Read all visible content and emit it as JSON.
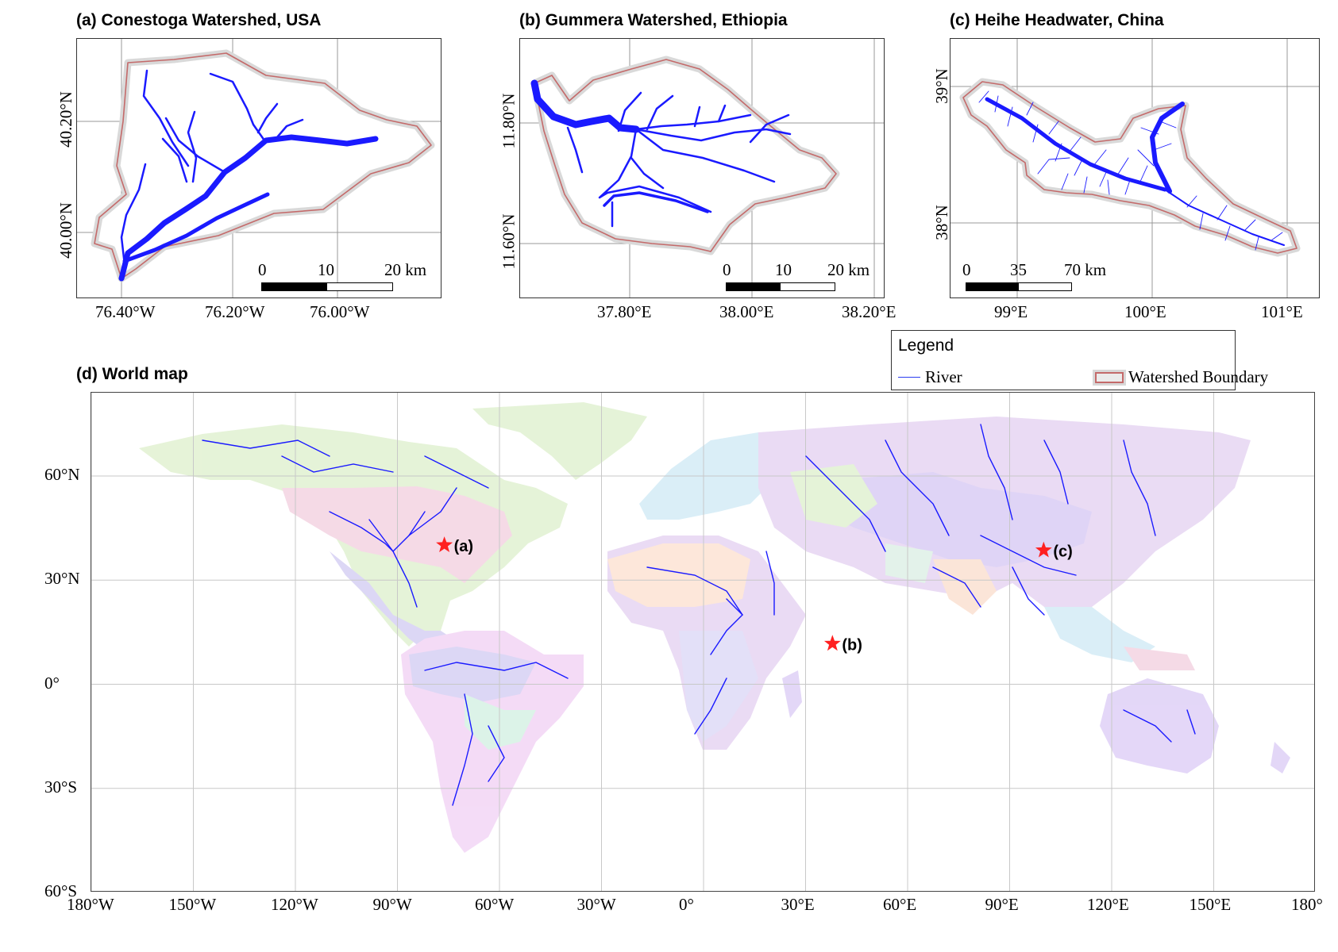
{
  "panels": {
    "a": {
      "title": "(a) Conestoga Watershed, USA",
      "y_ticks": [
        "40.20°N",
        "40.00°N"
      ],
      "x_ticks": [
        "76.40°W",
        "76.20°W",
        "76.00°W"
      ],
      "scale_labels": [
        "0",
        "10",
        "20 km"
      ]
    },
    "b": {
      "title": "(b) Gummera Watershed, Ethiopia",
      "y_ticks": [
        "11.80°N",
        "11.60°N"
      ],
      "x_ticks": [
        "37.80°E",
        "38.00°E",
        "38.20°E"
      ],
      "scale_labels": [
        "0",
        "10",
        "20 km"
      ]
    },
    "c": {
      "title": "(c) Heihe Headwater, China",
      "y_ticks": [
        "39°N",
        "38°N"
      ],
      "x_ticks": [
        "99°E",
        "100°E",
        "101°E"
      ],
      "scale_labels": [
        "0",
        "35",
        "70 km"
      ]
    },
    "d": {
      "title": "(d) World map",
      "y_ticks": [
        "60°N",
        "30°N",
        "0°",
        "30°S",
        "60°S"
      ],
      "x_ticks": [
        "180°W",
        "150°W",
        "120°W",
        "90°W",
        "60°W",
        "30°W",
        "0°",
        "30°E",
        "60°E",
        "90°E",
        "120°E",
        "150°E",
        "180°"
      ],
      "markers": [
        {
          "label": "(a)",
          "lon": -76.2,
          "lat": 40.1
        },
        {
          "label": "(b)",
          "lon": 37.9,
          "lat": 11.7
        },
        {
          "label": "(c)",
          "lon": 100.0,
          "lat": 38.6
        }
      ]
    }
  },
  "legend": {
    "title": "Legend",
    "river": "River",
    "boundary": "Watershed Boundary"
  },
  "colors": {
    "river": "#1a1aff",
    "boundary_line": "#c46a6a",
    "boundary_halo": "#d9d9d9",
    "marker": "#ff2020",
    "grid": "#bdbdbd"
  }
}
